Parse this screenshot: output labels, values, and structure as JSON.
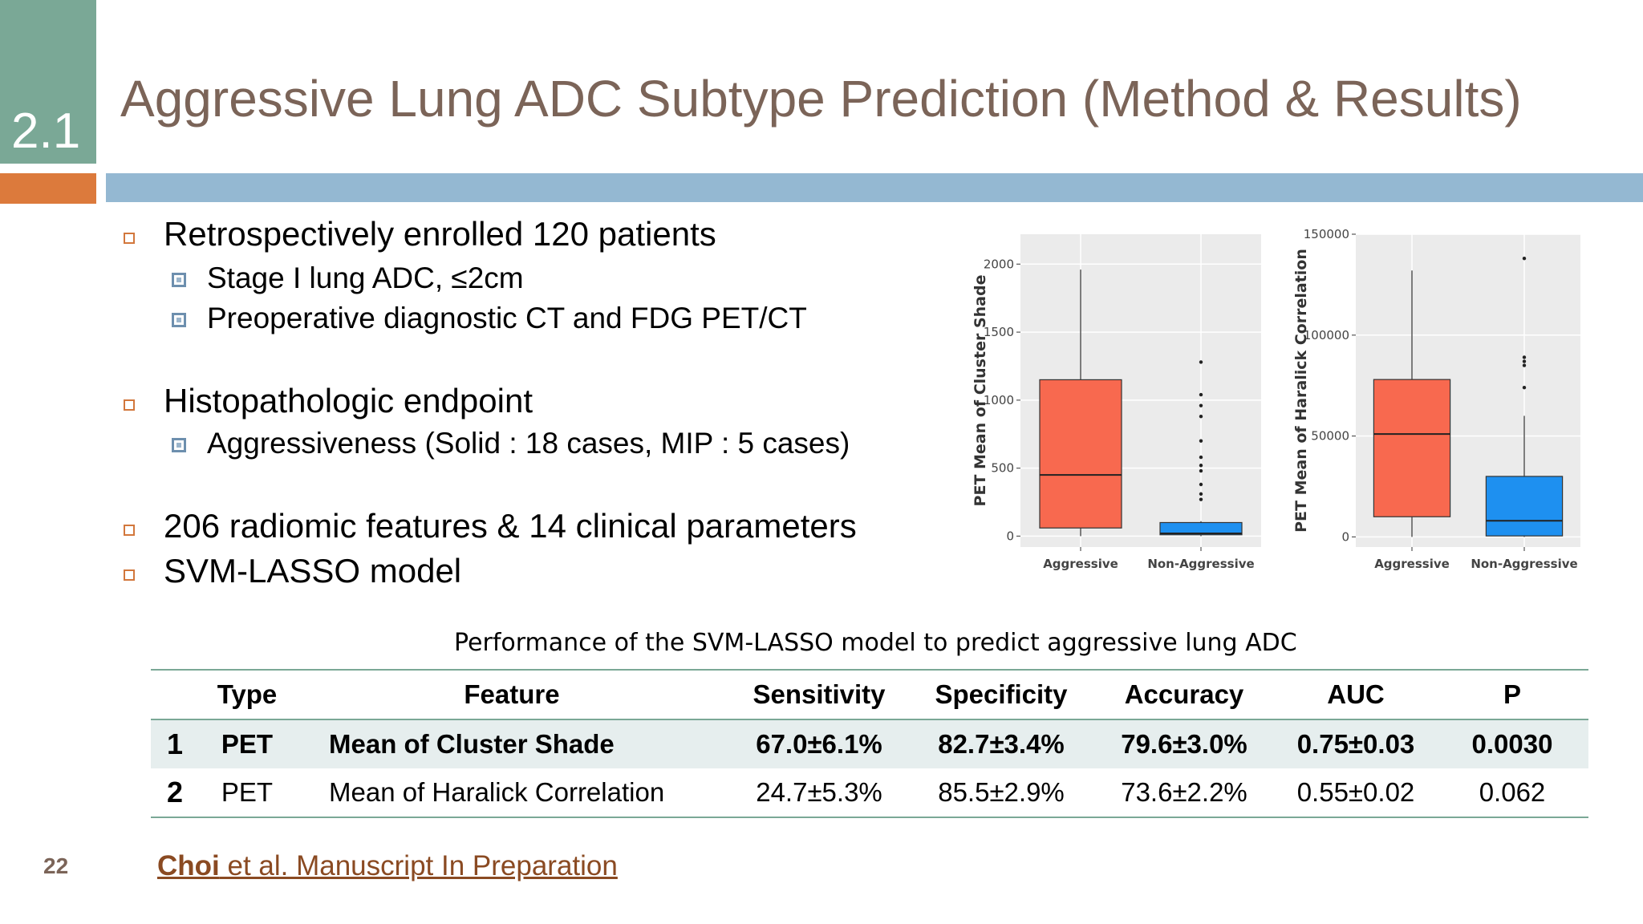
{
  "slide": {
    "section_number": "2.1",
    "title": "Aggressive Lung ADC Subtype Prediction (Method & Results)",
    "page_number": "22",
    "citation_author": "Choi",
    "citation_rest": " et al. Manuscript In Preparation"
  },
  "bullets": [
    {
      "text": "Retrospectively enrolled 120 patients",
      "subs": [
        "Stage I lung ADC, ≤2cm",
        "Preoperative diagnostic CT and FDG PET/CT"
      ]
    },
    {
      "text": "Histopathologic endpoint",
      "subs": [
        "Aggressiveness (Solid : 18 cases, MIP : 5 cases)"
      ]
    },
    {
      "text": "206 radiomic features & 14 clinical parameters",
      "subs": []
    },
    {
      "text": "SVM-LASSO model",
      "subs": []
    }
  ],
  "colors": {
    "aggressive": "#f8694f",
    "non_aggressive": "#1e90f0",
    "accent_green": "#7aa896",
    "accent_orange": "#dc7a3c",
    "accent_blue": "#94b8d2"
  },
  "chart_data": [
    {
      "type": "box",
      "ylabel": "PET Mean of Cluster Shade",
      "categories": [
        "Aggressive",
        "Non-Aggressive"
      ],
      "yticks": [
        "0",
        "500",
        "1000",
        "1500",
        "2000"
      ],
      "ylim": [
        -80,
        2220
      ],
      "boxes": [
        {
          "name": "Aggressive",
          "min": 0,
          "q1": 60,
          "median": 450,
          "q3": 1150,
          "max": 1960,
          "outliers": []
        },
        {
          "name": "Non-Aggressive",
          "min": 0,
          "q1": 10,
          "median": 20,
          "q3": 100,
          "max": 110,
          "outliers": [
            1280,
            1040,
            960,
            880,
            700,
            580,
            520,
            480,
            380,
            310,
            270
          ]
        }
      ]
    },
    {
      "type": "box",
      "ylabel": "PET Mean of Haralick Correlation",
      "categories": [
        "Aggressive",
        "Non-Aggressive"
      ],
      "yticks": [
        "0",
        "50000",
        "100000",
        "150000"
      ],
      "ylim": [
        -5000,
        150000
      ],
      "boxes": [
        {
          "name": "Aggressive",
          "min": 0,
          "q1": 10000,
          "median": 51000,
          "q3": 78000,
          "max": 132000,
          "outliers": []
        },
        {
          "name": "Non-Aggressive",
          "min": 0,
          "q1": 500,
          "median": 8000,
          "q3": 30000,
          "max": 60000,
          "outliers": [
            138000,
            89000,
            87000,
            85000,
            74000
          ]
        }
      ]
    }
  ],
  "table": {
    "caption": "Performance of the SVM-LASSO model to predict aggressive lung ADC",
    "headers": [
      "",
      "Type",
      "Feature",
      "Sensitivity",
      "Specificity",
      "Accuracy",
      "AUC",
      "P"
    ],
    "rows": [
      [
        "1",
        "PET",
        "Mean of Cluster Shade",
        "67.0±6.1%",
        "82.7±3.4%",
        "79.6±3.0%",
        "0.75±0.03",
        "0.0030"
      ],
      [
        "2",
        "PET",
        "Mean of Haralick Correlation",
        "24.7±5.3%",
        "85.5±2.9%",
        "73.6±2.2%",
        "0.55±0.02",
        "0.062"
      ]
    ]
  }
}
